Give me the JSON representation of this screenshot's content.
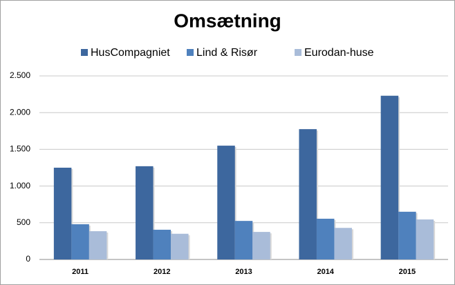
{
  "chart_data": {
    "type": "bar",
    "title": "Omsætning",
    "categories": [
      "2011",
      "2012",
      "2013",
      "2014",
      "2015"
    ],
    "series": [
      {
        "name": "HusCompagniet",
        "color": "#3d679e",
        "values": [
          1250,
          1270,
          1550,
          1775,
          2230
        ]
      },
      {
        "name": "Lind & Risør",
        "color": "#4f81bd",
        "values": [
          480,
          405,
          525,
          555,
          650
        ]
      },
      {
        "name": "Eurodan-huse",
        "color": "#a9bcd9",
        "values": [
          385,
          350,
          375,
          430,
          545
        ]
      }
    ],
    "ylim": [
      0,
      2500
    ],
    "yticks": [
      0,
      500,
      {
        "value": 1000,
        "label": "1.000"
      },
      {
        "value": 1500,
        "label": "1.500"
      },
      {
        "value": 2000,
        "label": "2.000"
      },
      {
        "value": 2500,
        "label": "2.500"
      }
    ],
    "grid": true,
    "legend": "top"
  }
}
